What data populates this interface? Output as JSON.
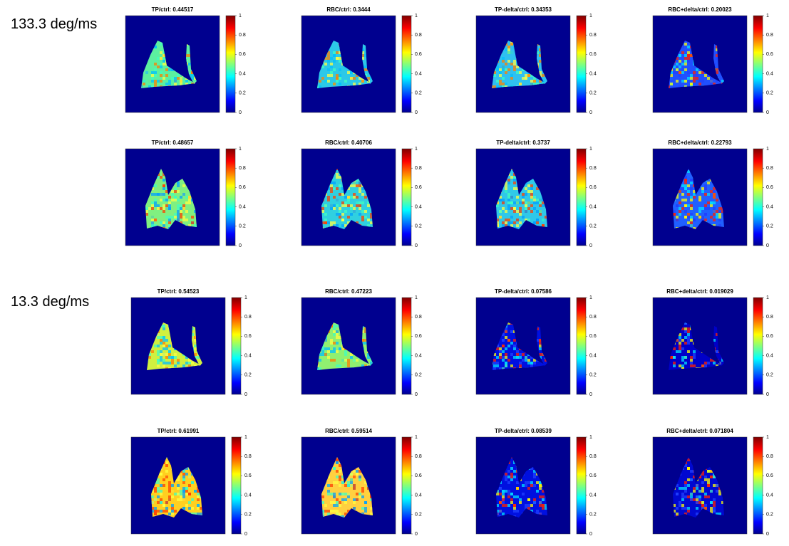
{
  "groups": [
    {
      "label": "133.3 deg/ms",
      "rows": [
        [
          "TP/ctrl: 0.44517",
          "RBC/ctrl: 0.3444",
          "TP-delta/ctrl: 0.34353",
          "RBC+delta/ctrl: 0.20023"
        ],
        [
          "TP/ctrl: 0.48657",
          "RBC/ctrl: 0.40706",
          "TP-delta/ctrl: 0.3737",
          "RBC+delta/ctrl: 0.22793"
        ]
      ]
    },
    {
      "label": "13.3 deg/ms",
      "rows": [
        [
          "TP/ctrl: 0.54523",
          "RBC/ctrl: 0.47223",
          "TP-delta/ctrl: 0.07586",
          "RBC+delta/ctrl: 0.019029"
        ],
        [
          "TP/ctrl: 0.61991",
          "RBC/ctrl: 0.59514",
          "TP-delta/ctrl: 0.08539",
          "RBC+delta/ctrl: 0.071804"
        ]
      ]
    }
  ],
  "colorbar_ticks": [
    0,
    0.2,
    0.4,
    0.6,
    0.8,
    1
  ]
}
